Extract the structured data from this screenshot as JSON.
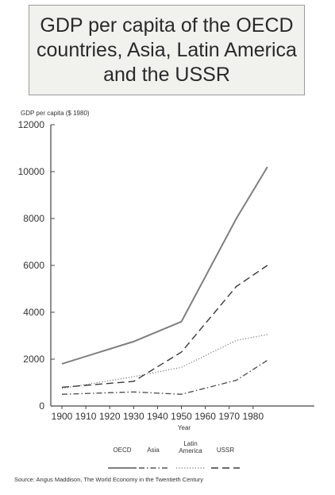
{
  "chart_data": {
    "type": "line",
    "title": "GDP per capita of the OECD countries, Asia, Latin America and the USSR",
    "ylabel": "GDP per capita ($ 1980)",
    "xlabel": "Year",
    "xlim": [
      1900,
      1986
    ],
    "ylim": [
      0,
      12000
    ],
    "x_ticks": [
      1900,
      1910,
      1920,
      1930,
      1940,
      1950,
      1960,
      1970,
      1980
    ],
    "y_ticks": [
      0,
      2000,
      4000,
      6000,
      8000,
      10000,
      12000
    ],
    "grid": false,
    "legend_position": "bottom",
    "series": [
      {
        "name": "OECD",
        "style": "solid",
        "color": "#7f7f7f",
        "x": [
          1900,
          1930,
          1950,
          1973,
          1986
        ],
        "values": [
          1800,
          2750,
          3600,
          8000,
          10200
        ]
      },
      {
        "name": "Asia",
        "style": "dashdot",
        "color": "#555555",
        "x": [
          1900,
          1930,
          1950,
          1973,
          1986
        ],
        "values": [
          500,
          600,
          500,
          1100,
          1950
        ]
      },
      {
        "name": "Latin America",
        "style": "dotted",
        "color": "#777777",
        "x": [
          1900,
          1930,
          1950,
          1973,
          1986
        ],
        "values": [
          750,
          1250,
          1650,
          2800,
          3050
        ]
      },
      {
        "name": "USSR",
        "style": "dashed",
        "color": "#3a3a3a",
        "x": [
          1900,
          1930,
          1950,
          1973,
          1986
        ],
        "values": [
          800,
          1050,
          2300,
          5100,
          6000
        ]
      }
    ],
    "source": "Source: Angus Maddison, The World Economy in the Twentieth Century"
  }
}
